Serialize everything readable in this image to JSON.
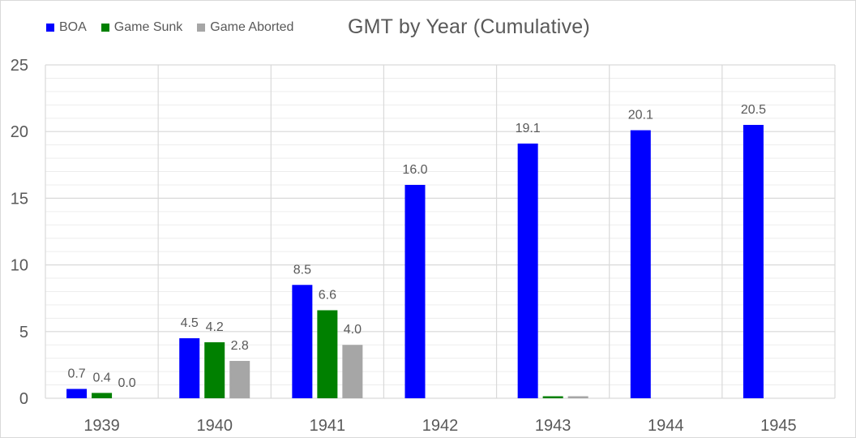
{
  "chart_data": {
    "type": "bar",
    "title": "GMT by Year (Cumulative)",
    "xlabel": "",
    "ylabel": "",
    "ylim": [
      0,
      25
    ],
    "yticks": [
      0,
      5,
      10,
      15,
      20,
      25
    ],
    "grid": true,
    "legend_position": "top-left",
    "categories": [
      "1939",
      "1940",
      "1941",
      "1942",
      "1943",
      "1944",
      "1945"
    ],
    "series": [
      {
        "name": "BOA",
        "color": "#0000ff",
        "values": [
          0.7,
          4.5,
          8.5,
          16.0,
          19.1,
          20.1,
          20.5
        ],
        "labels": [
          "0.7",
          "4.5",
          "8.5",
          "16.0",
          "19.1",
          "20.1",
          "20.5"
        ]
      },
      {
        "name": "Game Sunk",
        "color": "#008000",
        "values": [
          0.4,
          4.2,
          6.6,
          0,
          0.15,
          0,
          0
        ],
        "labels": [
          "0.4",
          "4.2",
          "6.6",
          "",
          "",
          "",
          ""
        ]
      },
      {
        "name": "Game Aborted",
        "color": "#a6a6a6",
        "values": [
          0.0,
          2.8,
          4.0,
          0,
          0.15,
          0,
          0
        ],
        "labels": [
          "0.0",
          "2.8",
          "4.0",
          "",
          "",
          "",
          ""
        ]
      }
    ]
  },
  "colors": {
    "grid_major": "#d9d9d9",
    "grid_minor": "#ededed",
    "axis_text": "#595959"
  }
}
